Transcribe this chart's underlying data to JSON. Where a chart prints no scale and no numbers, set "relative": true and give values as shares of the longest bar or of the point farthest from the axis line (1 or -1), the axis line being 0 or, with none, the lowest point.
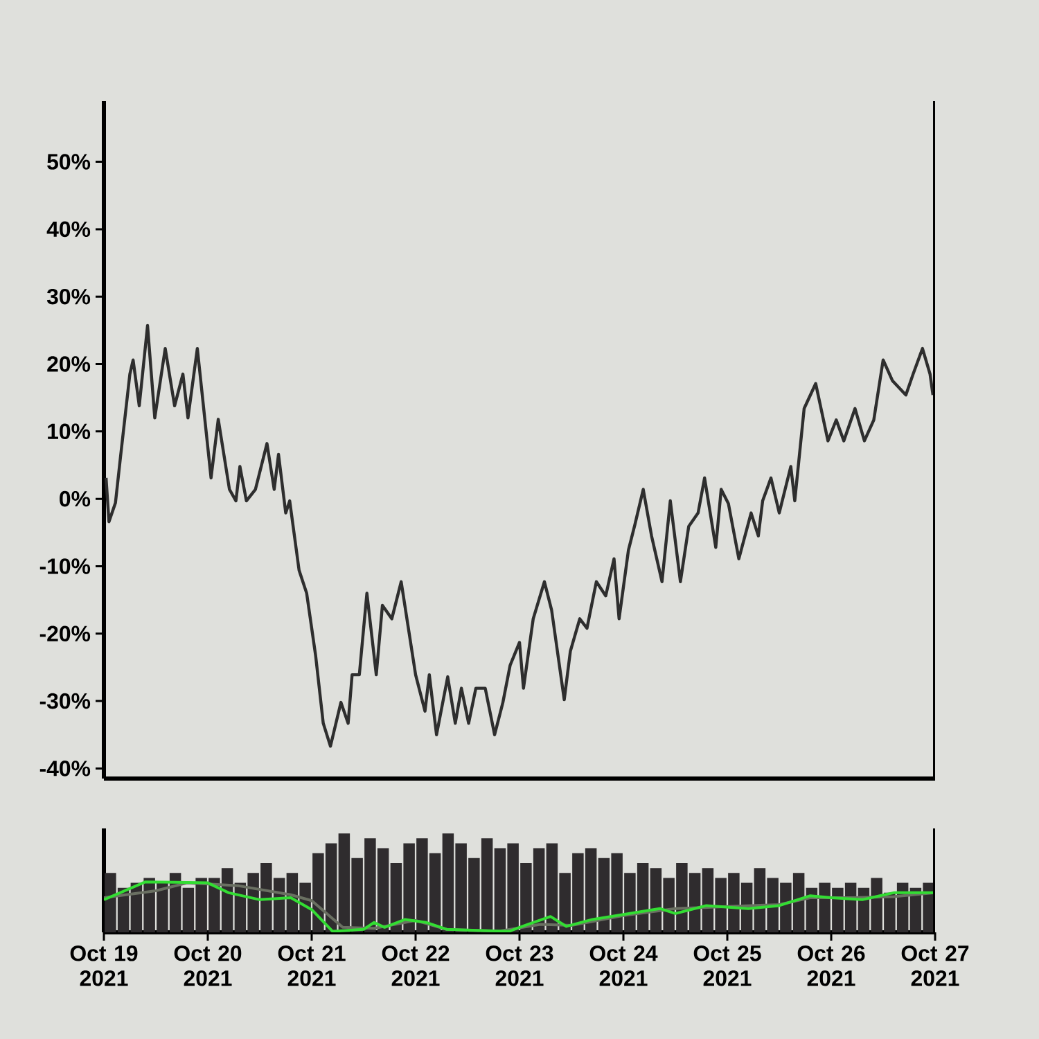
{
  "chart_data": [
    {
      "type": "line",
      "color": "#2e2e2e",
      "xlim": [
        "2021-10-19",
        "2021-10-27"
      ],
      "ylim": [
        -41.5,
        59
      ],
      "tick_labels": "y",
      "yticks": [
        {
          "value": -40,
          "label": "-40%"
        },
        {
          "value": -30,
          "label": "-30%"
        },
        {
          "value": -20,
          "label": "-20%"
        },
        {
          "value": -10,
          "label": "-10%"
        },
        {
          "value": 0,
          "label": "0%"
        },
        {
          "value": 10,
          "label": "10%"
        },
        {
          "value": 20,
          "label": "20%"
        },
        {
          "value": 30,
          "label": "30%"
        },
        {
          "value": 40,
          "label": "40%"
        },
        {
          "value": 50,
          "label": "50%"
        }
      ],
      "x": [
        "2021-10-19T00:30",
        "2021-10-19T01:10",
        "2021-10-19T02:40",
        "2021-10-19T03:50",
        "2021-10-19T06:00",
        "2021-10-19T06:45",
        "2021-10-19T08:10",
        "2021-10-19T10:05",
        "2021-10-19T11:45",
        "2021-10-19T14:10",
        "2021-10-19T16:20",
        "2021-10-19T18:15",
        "2021-10-19T19:25",
        "2021-10-19T21:35",
        "2021-10-20T00:45",
        "2021-10-20T02:25",
        "2021-10-20T05:00",
        "2021-10-20T06:30",
        "2021-10-20T07:25",
        "2021-10-20T08:55",
        "2021-10-20T11:00",
        "2021-10-20T13:40",
        "2021-10-20T15:20",
        "2021-10-20T16:20",
        "2021-10-20T18:00",
        "2021-10-20T18:55",
        "2021-10-20T21:05",
        "2021-10-20T22:50",
        "2021-10-21T00:55",
        "2021-10-21T02:40",
        "2021-10-21T04:20",
        "2021-10-21T06:45",
        "2021-10-21T08:25",
        "2021-10-21T09:20",
        "2021-10-21T11:00",
        "2021-10-21T12:45",
        "2021-10-21T14:55",
        "2021-10-21T16:20",
        "2021-10-21T18:30",
        "2021-10-21T20:40",
        "2021-10-22T00:00",
        "2021-10-22T02:10",
        "2021-10-22T03:10",
        "2021-10-22T04:50",
        "2021-10-22T07:25",
        "2021-10-22T09:10",
        "2021-10-22T10:35",
        "2021-10-22T12:15",
        "2021-10-22T13:55",
        "2021-10-22T16:05",
        "2021-10-22T18:15",
        "2021-10-22T20:10",
        "2021-10-22T21:50",
        "2021-10-23T00:00",
        "2021-10-23T00:55",
        "2021-10-23T03:10",
        "2021-10-23T05:45",
        "2021-10-23T07:25",
        "2021-10-23T10:20",
        "2021-10-23T11:45",
        "2021-10-23T13:55",
        "2021-10-23T15:35",
        "2021-10-23T17:45",
        "2021-10-23T19:55",
        "2021-10-23T21:50",
        "2021-10-23T23:00",
        "2021-10-24T01:10",
        "2021-10-24T02:40",
        "2021-10-24T04:35",
        "2021-10-24T06:30",
        "2021-10-24T08:55",
        "2021-10-24T10:50",
        "2021-10-24T13:10",
        "2021-10-24T15:05",
        "2021-10-24T17:15",
        "2021-10-24T18:45",
        "2021-10-24T21:20",
        "2021-10-24T22:35",
        "2021-10-25T00:15",
        "2021-10-25T02:40",
        "2021-10-25T05:30",
        "2021-10-25T07:10",
        "2021-10-25T08:10",
        "2021-10-25T10:05",
        "2021-10-25T12:00",
        "2021-10-25T14:40",
        "2021-10-25T15:35",
        "2021-10-25T17:45",
        "2021-10-25T20:25",
        "2021-10-25T23:15",
        "2021-10-26T01:10",
        "2021-10-26T02:55",
        "2021-10-26T05:30",
        "2021-10-26T07:40",
        "2021-10-26T09:50",
        "2021-10-26T12:00",
        "2021-10-26T14:10",
        "2021-10-26T17:15",
        "2021-10-26T18:55",
        "2021-10-26T21:05",
        "2021-10-26T22:50",
        "2021-10-26T23:30"
      ],
      "values": [
        3.1,
        -3.4,
        -0.6,
        6.2,
        18.5,
        20.6,
        13.8,
        25.7,
        12,
        22.3,
        13.8,
        18.5,
        12,
        22.3,
        3.1,
        11.8,
        1.4,
        -0.3,
        4.8,
        -0.3,
        1.4,
        8.2,
        1.4,
        6.6,
        -2.1,
        -0.3,
        -10.6,
        -14,
        -23.3,
        -33.3,
        -36.7,
        -30.2,
        -33.3,
        -26.1,
        -26.1,
        -14,
        -26.1,
        -15.8,
        -17.8,
        -12.3,
        -26.1,
        -31.5,
        -26.1,
        -35,
        -26.4,
        -33.3,
        -28.1,
        -33.3,
        -28.1,
        -28.1,
        -35,
        -30.2,
        -24.7,
        -21.3,
        -28.1,
        -17.8,
        -12.3,
        -16.5,
        -29.8,
        -22.6,
        -17.8,
        -19.2,
        -12.3,
        -14.4,
        -8.9,
        -17.8,
        -7.6,
        -3.8,
        1.4,
        -5.5,
        -12.3,
        -0.3,
        -12.3,
        -4.1,
        -2.1,
        3.1,
        -7.2,
        1.4,
        -0.7,
        -8.9,
        -2.1,
        -5.5,
        -0.3,
        3.1,
        -2.1,
        4.8,
        -0.3,
        13.4,
        17.1,
        8.6,
        11.7,
        8.6,
        13.4,
        8.6,
        11.7,
        20.6,
        17.5,
        15.4,
        18.5,
        22.3,
        18.5,
        15.4
      ]
    },
    {
      "type": "bar",
      "relative": true,
      "xlim": [
        "2021-10-19",
        "2021-10-27"
      ],
      "tick_labels": "x",
      "xticks": [
        {
          "value": "2021-10-19",
          "label": "Oct 19 2021"
        },
        {
          "value": "2021-10-20",
          "label": "Oct 20 2021"
        },
        {
          "value": "2021-10-21",
          "label": "Oct 21 2021"
        },
        {
          "value": "2021-10-22",
          "label": "Oct 22 2021"
        },
        {
          "value": "2021-10-23",
          "label": "Oct 23 2021"
        },
        {
          "value": "2021-10-24",
          "label": "Oct 24 2021"
        },
        {
          "value": "2021-10-25",
          "label": "Oct 25 2021"
        },
        {
          "value": "2021-10-26",
          "label": "Oct 26 2021"
        },
        {
          "value": "2021-10-27",
          "label": "Oct 27 2021"
        }
      ],
      "series": [
        {
          "type": "bar",
          "color": "#2f2c2e",
          "x": [
            "2021-10-19T01:30",
            "2021-10-19T04:30",
            "2021-10-19T07:30",
            "2021-10-19T10:30",
            "2021-10-19T13:30",
            "2021-10-19T16:30",
            "2021-10-19T19:30",
            "2021-10-19T22:30",
            "2021-10-20T01:30",
            "2021-10-20T04:30",
            "2021-10-20T07:30",
            "2021-10-20T10:30",
            "2021-10-20T13:30",
            "2021-10-20T16:30",
            "2021-10-20T19:30",
            "2021-10-20T22:30",
            "2021-10-21T01:30",
            "2021-10-21T04:30",
            "2021-10-21T07:30",
            "2021-10-21T10:30",
            "2021-10-21T13:30",
            "2021-10-21T16:30",
            "2021-10-21T19:30",
            "2021-10-21T22:30",
            "2021-10-22T01:30",
            "2021-10-22T04:30",
            "2021-10-22T07:30",
            "2021-10-22T10:30",
            "2021-10-22T13:30",
            "2021-10-22T16:30",
            "2021-10-22T19:30",
            "2021-10-22T22:30",
            "2021-10-23T01:30",
            "2021-10-23T04:30",
            "2021-10-23T07:30",
            "2021-10-23T10:30",
            "2021-10-23T13:30",
            "2021-10-23T16:30",
            "2021-10-23T19:30",
            "2021-10-23T22:30",
            "2021-10-24T01:30",
            "2021-10-24T04:30",
            "2021-10-24T07:30",
            "2021-10-24T10:30",
            "2021-10-24T13:30",
            "2021-10-24T16:30",
            "2021-10-24T19:30",
            "2021-10-24T22:30",
            "2021-10-25T01:30",
            "2021-10-25T04:30",
            "2021-10-25T07:30",
            "2021-10-25T10:30",
            "2021-10-25T13:30",
            "2021-10-25T16:30",
            "2021-10-25T19:30",
            "2021-10-25T22:30",
            "2021-10-26T01:30",
            "2021-10-26T04:30",
            "2021-10-26T07:30",
            "2021-10-26T10:30",
            "2021-10-26T13:30",
            "2021-10-26T16:30",
            "2021-10-26T19:30",
            "2021-10-26T22:30"
          ],
          "values": [
            0.6,
            0.45,
            0.5,
            0.55,
            0.5,
            0.6,
            0.45,
            0.55,
            0.55,
            0.65,
            0.5,
            0.6,
            0.7,
            0.55,
            0.6,
            0.5,
            0.8,
            0.9,
            1.0,
            0.75,
            0.95,
            0.85,
            0.7,
            0.9,
            0.95,
            0.8,
            1.0,
            0.9,
            0.75,
            0.95,
            0.85,
            0.9,
            0.7,
            0.85,
            0.9,
            0.6,
            0.8,
            0.85,
            0.75,
            0.8,
            0.6,
            0.7,
            0.65,
            0.55,
            0.7,
            0.6,
            0.65,
            0.55,
            0.6,
            0.5,
            0.65,
            0.55,
            0.5,
            0.6,
            0.45,
            0.5,
            0.45,
            0.5,
            0.45,
            0.55,
            0.4,
            0.5,
            0.45,
            0.5
          ]
        },
        {
          "type": "line",
          "color": "#6a7062",
          "x": [
            "2021-10-19T00:00",
            "2021-10-19T12:00",
            "2021-10-19T19:10",
            "2021-10-20T07:10",
            "2021-10-20T19:10",
            "2021-10-21T00:00",
            "2021-10-21T07:10",
            "2021-10-21T14:25",
            "2021-10-22T00:00",
            "2021-10-22T07:10",
            "2021-10-22T19:10",
            "2021-10-23T04:50",
            "2021-10-23T12:00",
            "2021-10-24T00:00",
            "2021-10-24T12:00",
            "2021-10-25T00:00",
            "2021-10-25T12:00",
            "2021-10-25T19:10",
            "2021-10-26T04:50",
            "2021-10-26T14:25",
            "2021-10-27T00:00"
          ],
          "values": [
            0.35,
            0.42,
            0.5,
            0.47,
            0.38,
            0.32,
            0.05,
            0.04,
            0.12,
            0.03,
            0.01,
            0.08,
            0.07,
            0.17,
            0.24,
            0.26,
            0.28,
            0.35,
            0.35,
            0.36,
            0.4
          ]
        },
        {
          "type": "line",
          "color": "#33dd33",
          "x": [
            "2021-10-19T00:00",
            "2021-10-19T09:35",
            "2021-10-20T00:00",
            "2021-10-20T04:50",
            "2021-10-20T12:00",
            "2021-10-20T19:10",
            "2021-10-21T00:00",
            "2021-10-21T04:50",
            "2021-10-21T12:00",
            "2021-10-21T14:25",
            "2021-10-21T16:50",
            "2021-10-21T21:35",
            "2021-10-22T02:25",
            "2021-10-22T07:10",
            "2021-10-22T14:25",
            "2021-10-22T21:35",
            "2021-10-23T00:00",
            "2021-10-23T07:10",
            "2021-10-23T10:50",
            "2021-10-23T16:50",
            "2021-10-24T00:00",
            "2021-10-24T08:25",
            "2021-10-24T12:00",
            "2021-10-24T19:10",
            "2021-10-25T04:50",
            "2021-10-25T12:00",
            "2021-10-25T19:10",
            "2021-10-26T00:00",
            "2021-10-26T07:10",
            "2021-10-26T14:25",
            "2021-10-27T00:00"
          ],
          "values": [
            0.33,
            0.51,
            0.5,
            0.4,
            0.33,
            0.35,
            0.23,
            0.01,
            0.03,
            0.1,
            0.05,
            0.13,
            0.1,
            0.03,
            0.02,
            0.01,
            0.05,
            0.16,
            0.06,
            0.13,
            0.18,
            0.24,
            0.19,
            0.27,
            0.24,
            0.27,
            0.37,
            0.35,
            0.33,
            0.4,
            0.4
          ]
        }
      ]
    }
  ]
}
